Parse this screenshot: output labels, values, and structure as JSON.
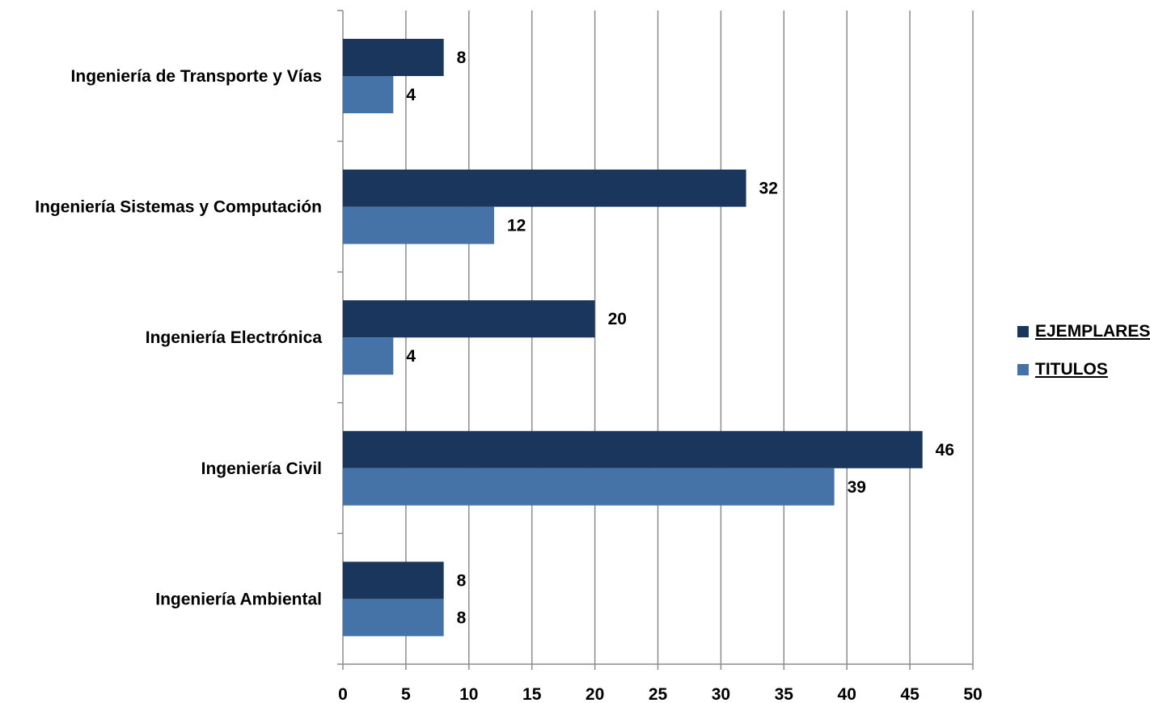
{
  "chart_data": {
    "type": "bar",
    "orientation": "horizontal",
    "categories": [
      "Ingeniería de Transporte y Vías",
      "Ingeniería Sistemas y Computación",
      "Ingeniería Electrónica",
      "Ingeniería Civil",
      "Ingeniería Ambiental"
    ],
    "series": [
      {
        "name": "EJEMPLARES",
        "color": "#1b365d",
        "values": [
          8,
          32,
          20,
          46,
          8
        ]
      },
      {
        "name": "TITULOS",
        "color": "#4572a7",
        "values": [
          4,
          12,
          4,
          39,
          8
        ]
      }
    ],
    "xlim": [
      0,
      50
    ],
    "xticks": [
      0,
      5,
      10,
      15,
      20,
      25,
      30,
      35,
      40,
      45,
      50
    ],
    "grid": "vertical",
    "legend_position": "right",
    "data_labels": true
  }
}
